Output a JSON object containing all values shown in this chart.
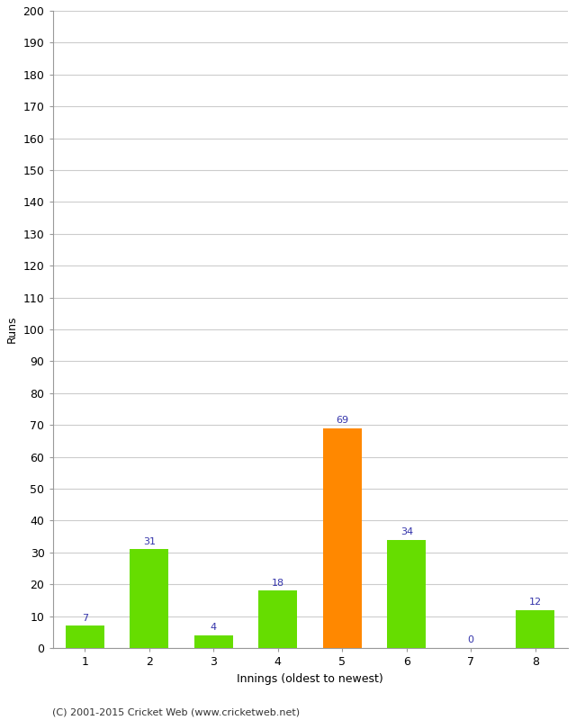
{
  "categories": [
    "1",
    "2",
    "3",
    "4",
    "5",
    "6",
    "7",
    "8"
  ],
  "values": [
    7,
    31,
    4,
    18,
    69,
    34,
    0,
    12
  ],
  "bar_colors": [
    "#66dd00",
    "#66dd00",
    "#66dd00",
    "#66dd00",
    "#ff8800",
    "#66dd00",
    "#66dd00",
    "#66dd00"
  ],
  "xlabel": "Innings (oldest to newest)",
  "ylabel": "Runs",
  "ylim": [
    0,
    200
  ],
  "yticks": [
    0,
    10,
    20,
    30,
    40,
    50,
    60,
    70,
    80,
    90,
    100,
    110,
    120,
    130,
    140,
    150,
    160,
    170,
    180,
    190,
    200
  ],
  "label_color": "#3333aa",
  "label_fontsize": 8,
  "axis_fontsize": 9,
  "tick_fontsize": 9,
  "footer": "(C) 2001-2015 Cricket Web (www.cricketweb.net)",
  "footer_fontsize": 8,
  "background_color": "#ffffff",
  "grid_color": "#cccccc"
}
